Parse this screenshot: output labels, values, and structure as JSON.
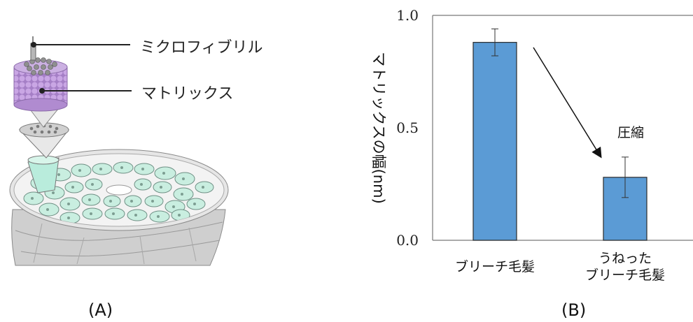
{
  "panel_a": {
    "label": "(A)",
    "callouts": [
      "ミクロフィブリル",
      "マトリックス"
    ]
  },
  "panel_b": {
    "label": "(B)",
    "annotation": "圧縮"
  },
  "chart_data": {
    "type": "bar",
    "categories": [
      "ブリーチ毛髪",
      "うねった\nブリーチ毛髪"
    ],
    "category_lines": [
      [
        "ブリーチ毛髪"
      ],
      [
        "うねった",
        "ブリーチ毛髪"
      ]
    ],
    "values": [
      0.88,
      0.28
    ],
    "errors": [
      0.06,
      0.09
    ],
    "ylabel": "マトリックスの幅(nm)",
    "ylim": [
      0.0,
      1.0
    ],
    "yticks": [
      "0.0",
      "0.5",
      "1.0"
    ],
    "ytick_values": [
      0.0,
      0.5,
      1.0
    ],
    "bar_color": "#5b9bd5",
    "grid": false
  },
  "colors": {
    "microfibril": "#9a9a9a",
    "matrix": "#b792d6",
    "cell": "#c9eee0",
    "cortex": "#d7d7d7"
  }
}
